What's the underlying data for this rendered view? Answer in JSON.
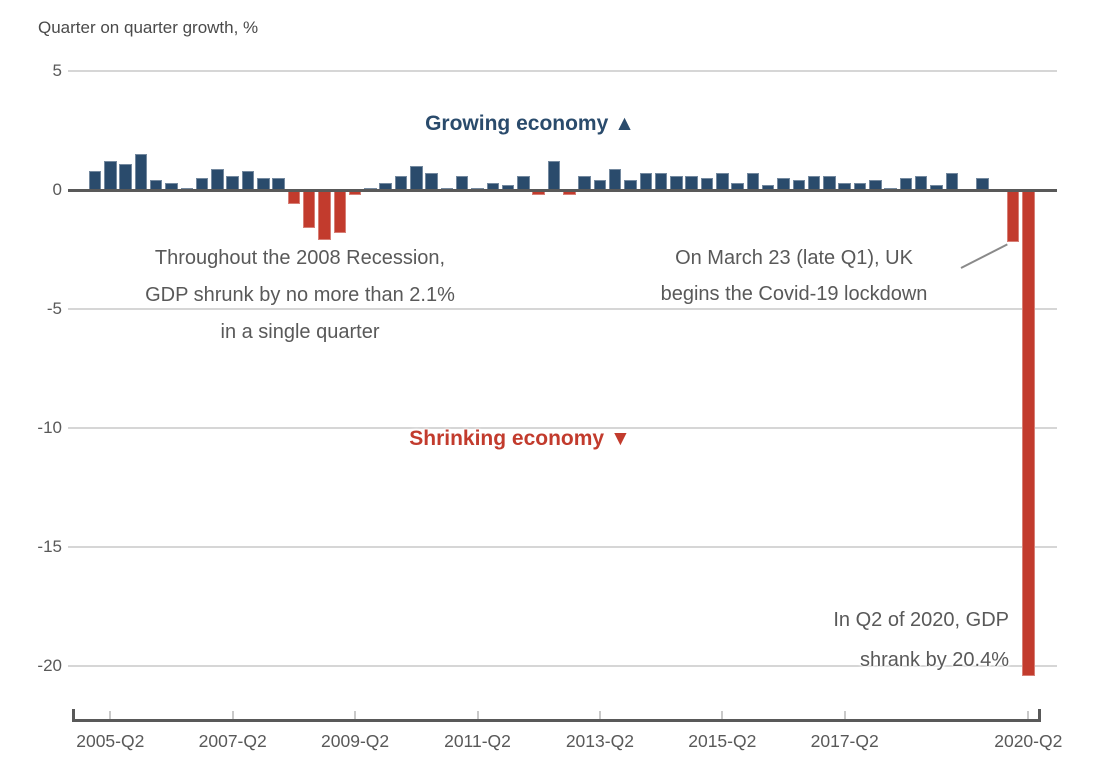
{
  "title": "Quarter on quarter growth, %",
  "labels": {
    "growing": "Growing economy ▲",
    "shrinking": "Shrinking economy ▼"
  },
  "annotations": {
    "recession": {
      "lines": [
        "Throughout the 2008 Recession,",
        "GDP shrunk by no more than 2.1%",
        "in a single quarter"
      ]
    },
    "covid": {
      "lines": [
        "On March 23 (late Q1), UK",
        "begins the Covid-19 lockdown"
      ]
    },
    "q2_2020": {
      "lines": [
        "In Q2 of 2020, GDP",
        "shrank by 20.4%"
      ]
    }
  },
  "colors": {
    "positive_bar": "#2a4b6c",
    "negative_bar": "#c23b2d",
    "gridline": "#d6d6d6",
    "axis": "#595959",
    "text": "#595959"
  },
  "chart_data": {
    "type": "bar",
    "title": "Quarter on quarter growth, %",
    "ylabel": "Quarter on quarter growth, %",
    "ylim": [
      -21,
      5
    ],
    "grid": true,
    "legend": false,
    "y_ticks": [
      5,
      0,
      -5,
      -10,
      -15,
      -20
    ],
    "x_tick_labels": [
      "2005-Q2",
      "2007-Q2",
      "2009-Q2",
      "2011-Q2",
      "2013-Q2",
      "2015-Q2",
      "2017-Q2",
      "2020-Q2"
    ],
    "categories": [
      "2005-Q1",
      "2005-Q2",
      "2005-Q3",
      "2005-Q4",
      "2006-Q1",
      "2006-Q2",
      "2006-Q3",
      "2006-Q4",
      "2007-Q1",
      "2007-Q2",
      "2007-Q3",
      "2007-Q4",
      "2008-Q1",
      "2008-Q2",
      "2008-Q3",
      "2008-Q4",
      "2009-Q1",
      "2009-Q2",
      "2009-Q3",
      "2009-Q4",
      "2010-Q1",
      "2010-Q2",
      "2010-Q3",
      "2010-Q4",
      "2011-Q1",
      "2011-Q2",
      "2011-Q3",
      "2011-Q4",
      "2012-Q1",
      "2012-Q2",
      "2012-Q3",
      "2012-Q4",
      "2013-Q1",
      "2013-Q2",
      "2013-Q3",
      "2013-Q4",
      "2014-Q1",
      "2014-Q2",
      "2014-Q3",
      "2014-Q4",
      "2015-Q1",
      "2015-Q2",
      "2015-Q3",
      "2015-Q4",
      "2016-Q1",
      "2016-Q2",
      "2016-Q3",
      "2016-Q4",
      "2017-Q1",
      "2017-Q2",
      "2017-Q3",
      "2017-Q4",
      "2018-Q1",
      "2018-Q2",
      "2018-Q3",
      "2018-Q4",
      "2019-Q1",
      "2019-Q2",
      "2019-Q3",
      "2019-Q4",
      "2020-Q1",
      "2020-Q2"
    ],
    "values": [
      0.8,
      1.2,
      1.1,
      1.5,
      0.4,
      0.3,
      0.1,
      0.5,
      0.9,
      0.6,
      0.8,
      0.5,
      0.5,
      -0.6,
      -1.6,
      -2.1,
      -1.8,
      -0.2,
      0.1,
      0.3,
      0.6,
      1.0,
      0.7,
      0.1,
      0.6,
      0.1,
      0.3,
      0.2,
      0.6,
      -0.2,
      1.2,
      -0.2,
      0.6,
      0.4,
      0.9,
      0.4,
      0.7,
      0.7,
      0.6,
      0.6,
      0.5,
      0.7,
      0.3,
      0.7,
      0.2,
      0.5,
      0.4,
      0.6,
      0.6,
      0.3,
      0.3,
      0.4,
      0.1,
      0.5,
      0.6,
      0.2,
      0.7,
      -0.1,
      0.5,
      0.0,
      -2.2,
      -20.4
    ]
  }
}
